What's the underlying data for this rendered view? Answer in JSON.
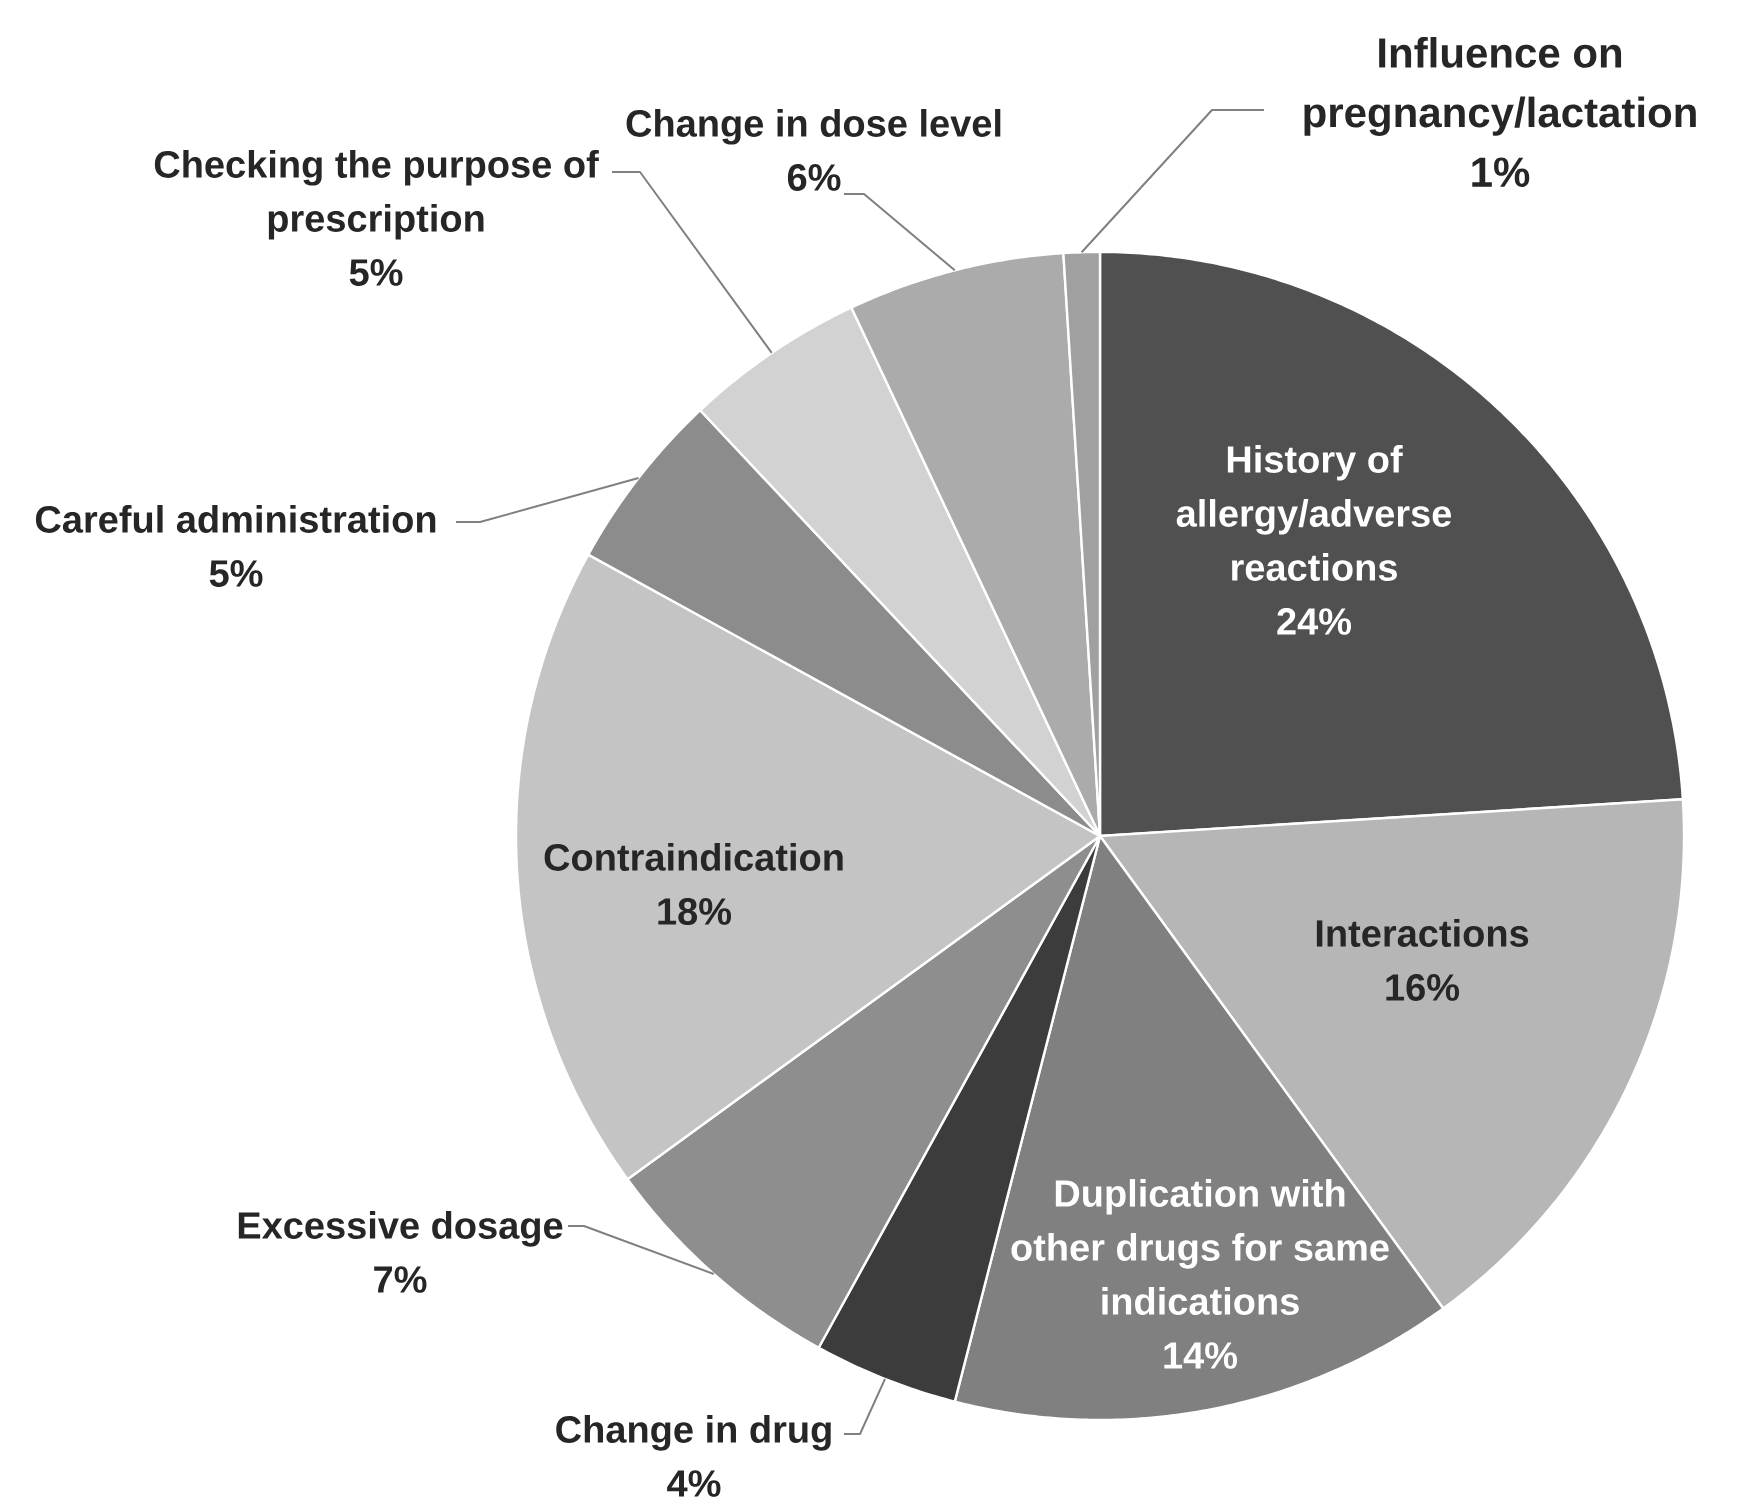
{
  "chart_data": {
    "type": "pie",
    "categories": [
      "History of allergy/adverse reactions",
      "Interactions",
      "Duplication with other drugs for same indications",
      "Change in drug",
      "Excessive dosage",
      "Contraindication",
      "Careful administration",
      "Checking the purpose of prescription",
      "Change in dose level",
      "Influence on pregnancy/lactation"
    ],
    "values": [
      24,
      16,
      14,
      4,
      7,
      18,
      5,
      5,
      6,
      1
    ],
    "value_labels": [
      "24%",
      "16%",
      "14%",
      "4%",
      "7%",
      "18%",
      "5%",
      "5%",
      "6%",
      "1%"
    ],
    "colors": [
      "#505050",
      "#b6b6b6",
      "#808080",
      "#3c3c3c",
      "#8e8e8e",
      "#c4c4c4",
      "#8c8c8c",
      "#d2d2d2",
      "#ababab",
      "#a0a0a0"
    ]
  }
}
